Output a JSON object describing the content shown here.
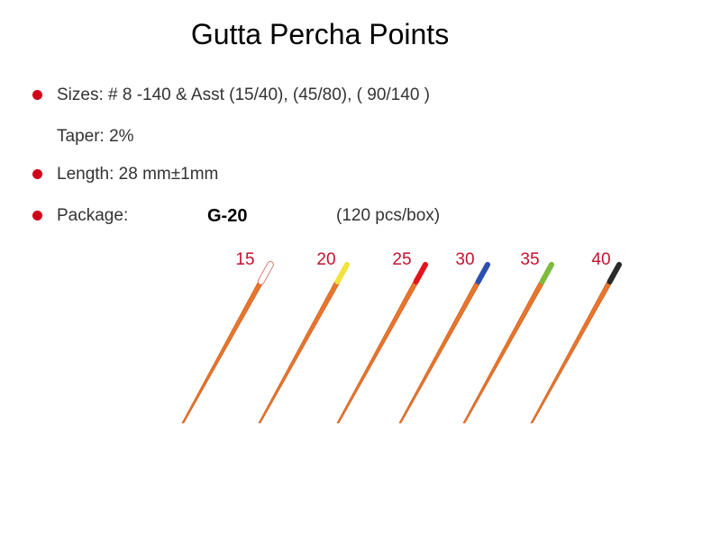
{
  "title": "Gutta Percha Points",
  "specs": {
    "sizes": "Sizes: # 8 -140 & Asst (15/40), (45/80), ( 90/140 )",
    "taper": "Taper: 2%",
    "length": "Length: 28 mm±1mm",
    "package": "Package:",
    "model": "G-20",
    "pack_count": "(120 pcs/box)"
  },
  "colors": {
    "bullet": "#d0021b",
    "label": "#c8102e",
    "point": "#e8762b"
  },
  "points": [
    {
      "size": "15",
      "cap_color": "#ffffff"
    },
    {
      "size": "20",
      "cap_color": "#f2e23a"
    },
    {
      "size": "25",
      "cap_color": "#e3141c"
    },
    {
      "size": "30",
      "cap_color": "#2c4fb0"
    },
    {
      "size": "35",
      "cap_color": "#7dbb3a"
    },
    {
      "size": "40",
      "cap_color": "#2a2a2a"
    }
  ]
}
